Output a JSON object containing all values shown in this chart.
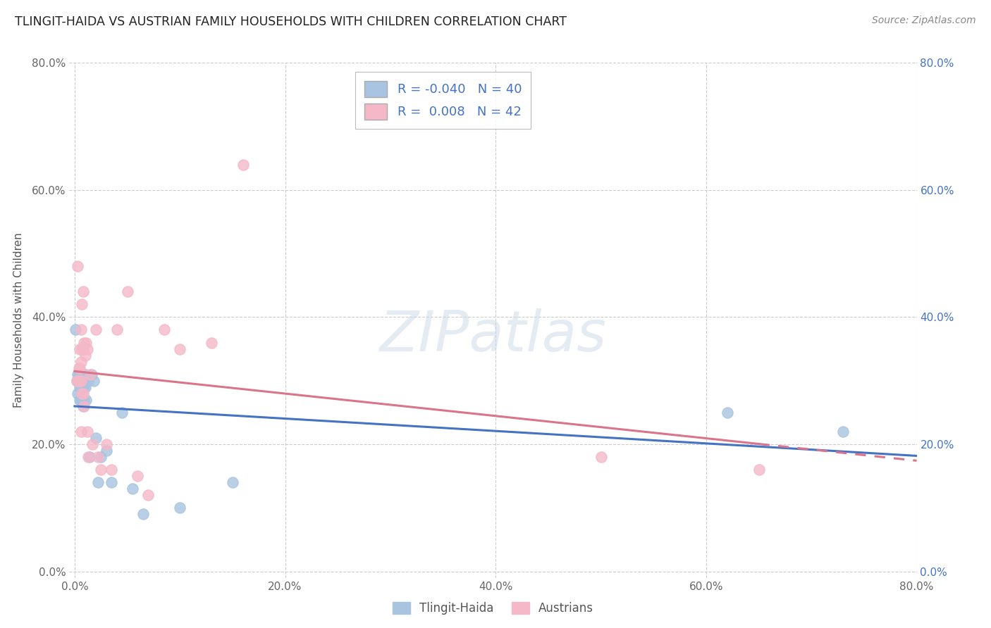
{
  "title": "TLINGIT-HAIDA VS AUSTRIAN FAMILY HOUSEHOLDS WITH CHILDREN CORRELATION CHART",
  "source": "Source: ZipAtlas.com",
  "ylabel": "Family Households with Children",
  "x_tick_labels": [
    "0.0%",
    "",
    "",
    "",
    "",
    "20.0%",
    "",
    "",
    "",
    "",
    "40.0%",
    "",
    "",
    "",
    "",
    "60.0%",
    "",
    "",
    "",
    "",
    "80.0%"
  ],
  "x_tick_values": [
    0.0,
    0.04,
    0.08,
    0.12,
    0.16,
    0.2,
    0.24,
    0.28,
    0.32,
    0.36,
    0.4,
    0.44,
    0.48,
    0.52,
    0.56,
    0.6,
    0.64,
    0.68,
    0.72,
    0.76,
    0.8
  ],
  "x_tick_labels_shown": [
    "0.0%",
    "20.0%",
    "40.0%",
    "60.0%",
    "80.0%"
  ],
  "x_tick_values_shown": [
    0.0,
    0.2,
    0.4,
    0.6,
    0.8
  ],
  "y_tick_labels_shown": [
    "0.0%",
    "20.0%",
    "40.0%",
    "60.0%",
    "80.0%"
  ],
  "y_tick_values_shown": [
    0.0,
    0.2,
    0.4,
    0.6,
    0.8
  ],
  "xlim": [
    -0.005,
    0.8
  ],
  "ylim": [
    -0.01,
    0.8
  ],
  "background_color": "#ffffff",
  "grid_color": "#cccccc",
  "tlingit_R": -0.04,
  "tlingit_N": 40,
  "austrian_R": 0.008,
  "austrian_N": 42,
  "tlingit_color": "#a8c4e0",
  "austrian_color": "#f4b8c8",
  "tlingit_line_color": "#4472c4",
  "austrian_line_color": "#d9748a",
  "legend_box_color": "#4472c4",
  "tlingit_x": [
    0.001,
    0.002,
    0.003,
    0.003,
    0.004,
    0.004,
    0.005,
    0.005,
    0.005,
    0.006,
    0.006,
    0.006,
    0.007,
    0.007,
    0.007,
    0.008,
    0.008,
    0.008,
    0.009,
    0.009,
    0.01,
    0.01,
    0.011,
    0.011,
    0.013,
    0.014,
    0.016,
    0.018,
    0.02,
    0.022,
    0.025,
    0.03,
    0.035,
    0.045,
    0.055,
    0.065,
    0.1,
    0.15,
    0.62,
    0.73
  ],
  "tlingit_y": [
    0.38,
    0.3,
    0.31,
    0.28,
    0.31,
    0.3,
    0.3,
    0.29,
    0.27,
    0.3,
    0.29,
    0.27,
    0.31,
    0.29,
    0.27,
    0.3,
    0.29,
    0.26,
    0.3,
    0.27,
    0.3,
    0.29,
    0.31,
    0.27,
    0.3,
    0.18,
    0.31,
    0.3,
    0.21,
    0.14,
    0.18,
    0.19,
    0.14,
    0.25,
    0.13,
    0.09,
    0.1,
    0.14,
    0.25,
    0.22
  ],
  "austrian_x": [
    0.002,
    0.003,
    0.003,
    0.004,
    0.004,
    0.005,
    0.005,
    0.005,
    0.006,
    0.006,
    0.006,
    0.006,
    0.007,
    0.007,
    0.007,
    0.008,
    0.008,
    0.008,
    0.009,
    0.009,
    0.01,
    0.011,
    0.012,
    0.012,
    0.013,
    0.015,
    0.017,
    0.02,
    0.022,
    0.025,
    0.03,
    0.035,
    0.04,
    0.05,
    0.06,
    0.07,
    0.085,
    0.1,
    0.13,
    0.16,
    0.5,
    0.65
  ],
  "austrian_y": [
    0.3,
    0.48,
    0.3,
    0.32,
    0.3,
    0.35,
    0.32,
    0.3,
    0.38,
    0.33,
    0.3,
    0.22,
    0.42,
    0.35,
    0.28,
    0.44,
    0.35,
    0.28,
    0.36,
    0.26,
    0.34,
    0.36,
    0.35,
    0.22,
    0.18,
    0.31,
    0.2,
    0.38,
    0.18,
    0.16,
    0.2,
    0.16,
    0.38,
    0.44,
    0.15,
    0.12,
    0.38,
    0.35,
    0.36,
    0.64,
    0.18,
    0.16
  ]
}
